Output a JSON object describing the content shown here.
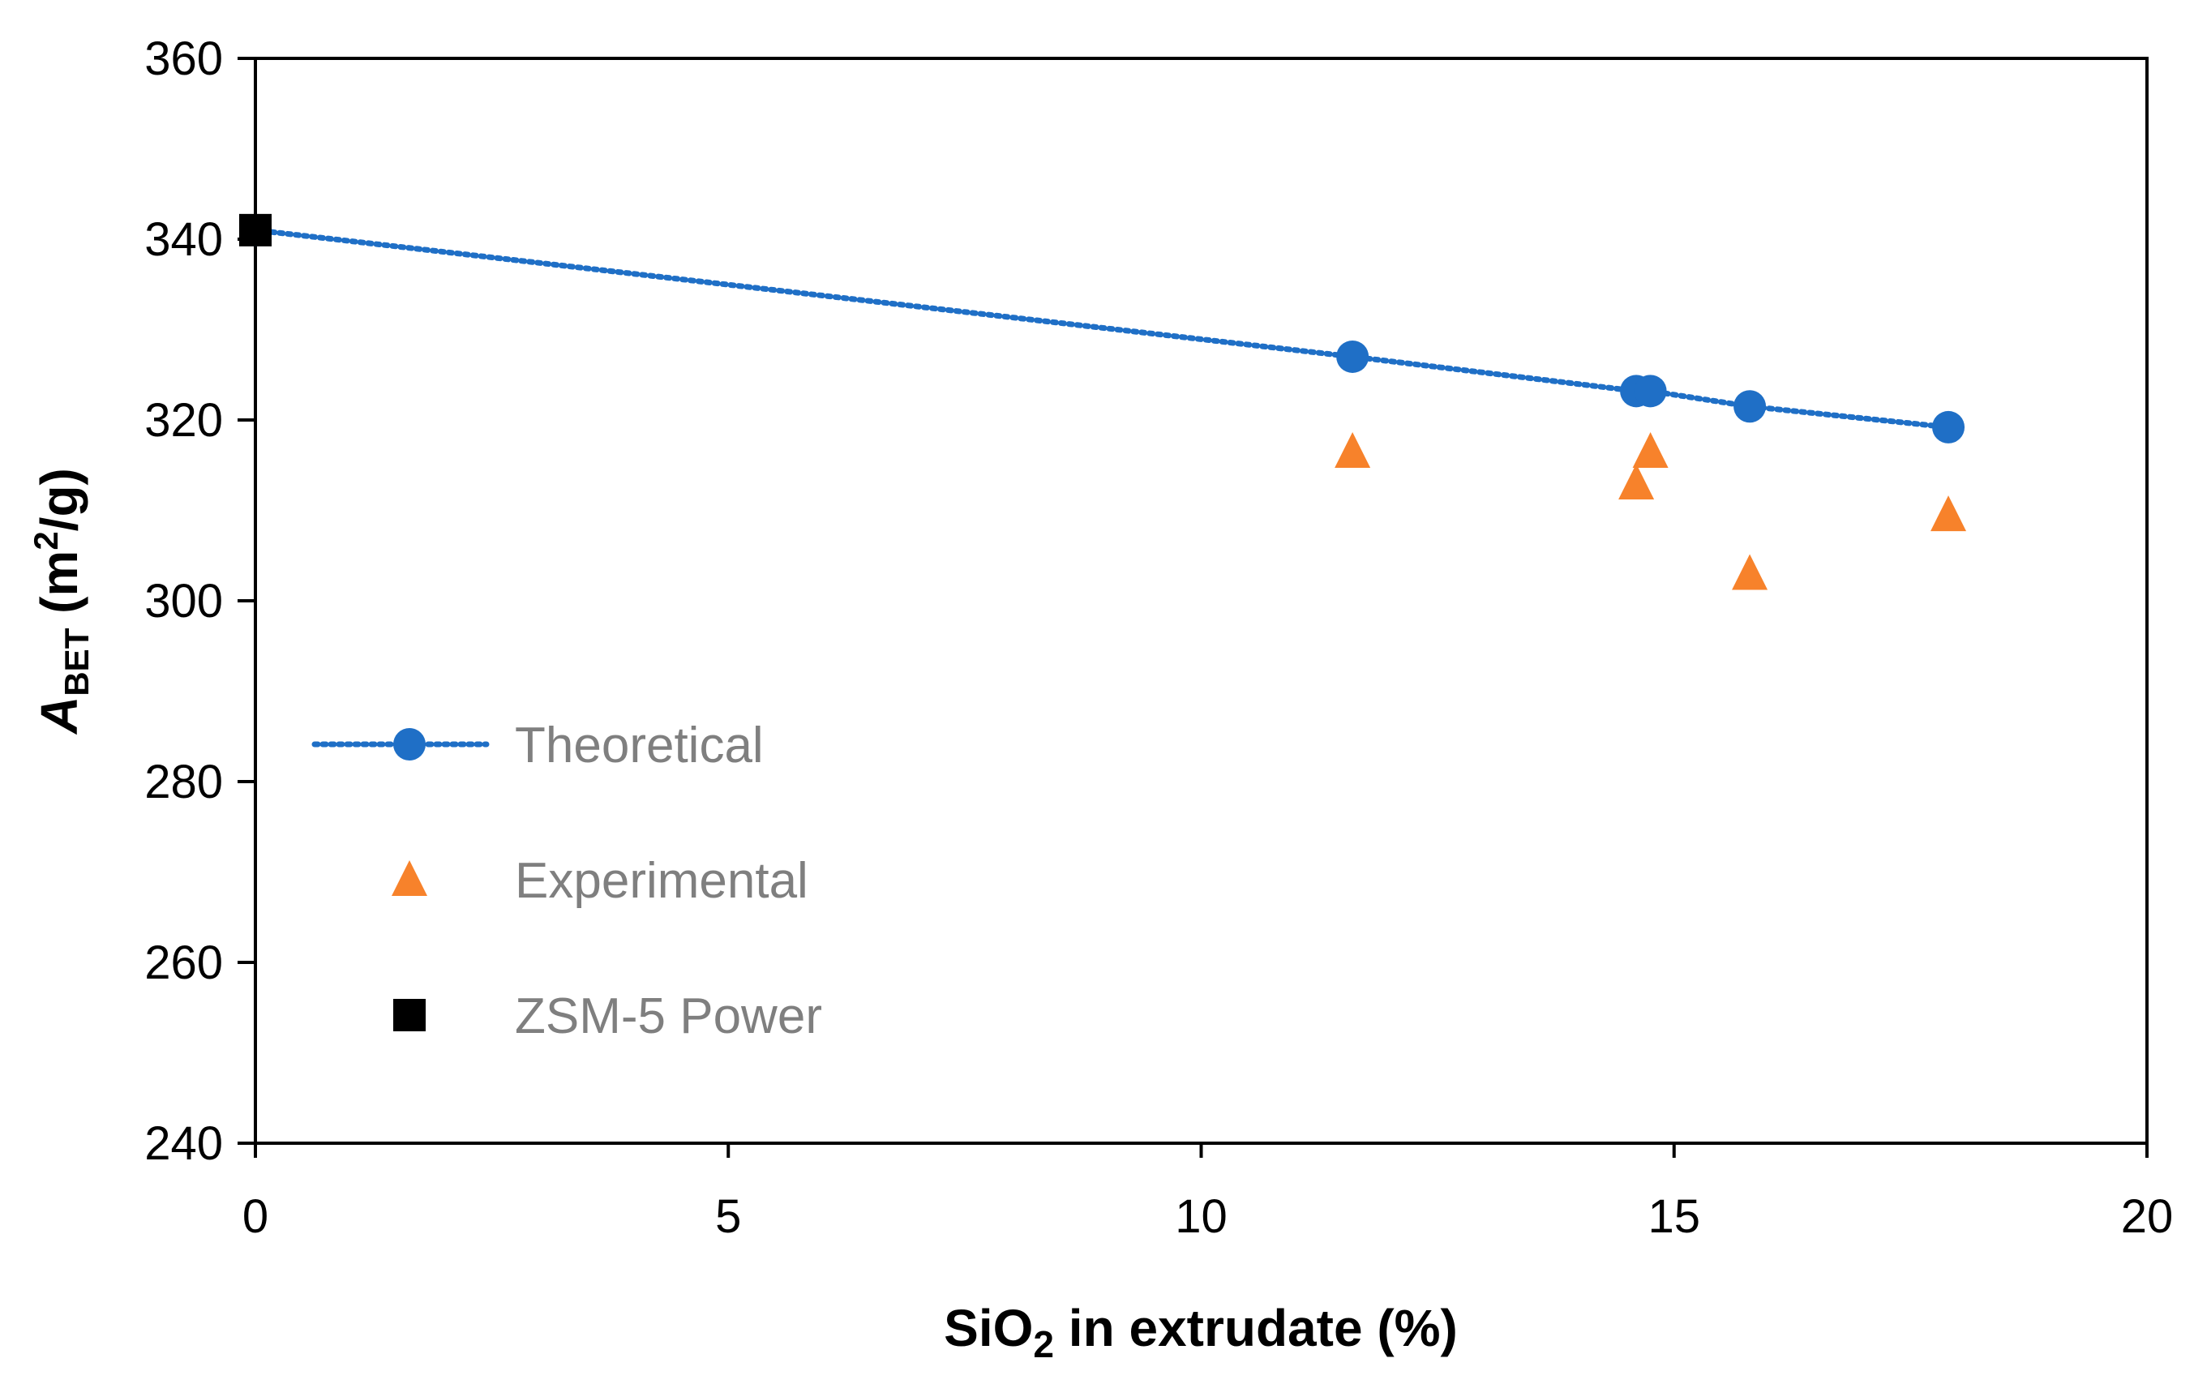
{
  "chart_data": {
    "type": "scatter",
    "title": "",
    "xlabel": {
      "main": "SiO",
      "sub": "2",
      "rest": " in extrudate (%)"
    },
    "ylabel": {
      "main": "A",
      "sub": "BET",
      "rest": " (m",
      "sup": "2",
      "end": "/g)"
    },
    "xlim": [
      0,
      20
    ],
    "ylim": [
      240,
      360
    ],
    "xticks": [
      0,
      5,
      10,
      15,
      20
    ],
    "yticks": [
      240,
      260,
      280,
      300,
      320,
      340,
      360
    ],
    "grid": false,
    "legend_position": "left-center",
    "series": [
      {
        "name": "Theoretical",
        "marker": "circle",
        "line": "dotted",
        "color": "#1f6fc6",
        "points": [
          {
            "x": 0,
            "y": 341
          },
          {
            "x": 11.6,
            "y": 327
          },
          {
            "x": 14.6,
            "y": 323.2
          },
          {
            "x": 14.75,
            "y": 323.2
          },
          {
            "x": 15.8,
            "y": 321.5
          },
          {
            "x": 17.9,
            "y": 319.2
          }
        ]
      },
      {
        "name": "Experimental",
        "marker": "triangle",
        "line": "none",
        "color": "#f7822b",
        "points": [
          {
            "x": 11.6,
            "y": 316.5
          },
          {
            "x": 14.6,
            "y": 313
          },
          {
            "x": 14.75,
            "y": 316.5
          },
          {
            "x": 15.8,
            "y": 303
          },
          {
            "x": 17.9,
            "y": 309.5
          }
        ]
      },
      {
        "name": "ZSM-5 Power",
        "marker": "square",
        "line": "none",
        "color": "#000000",
        "points": [
          {
            "x": 0,
            "y": 341
          }
        ]
      }
    ]
  }
}
